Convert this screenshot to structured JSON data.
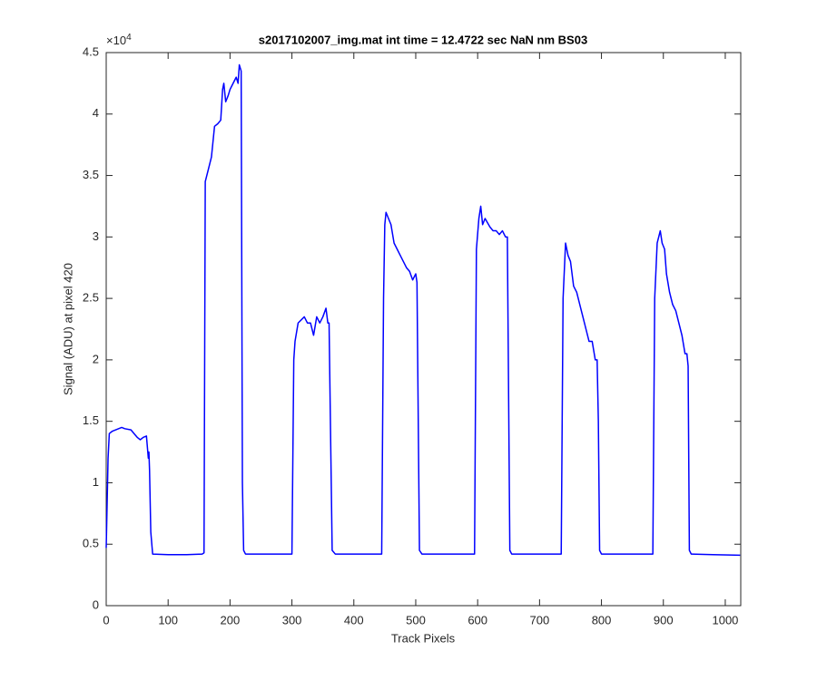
{
  "chart_data": {
    "type": "line",
    "title": "s2017102007_img.mat int time = 12.4722 sec  NaN nm BS03",
    "x_label": "Track Pixels",
    "y_label": "Signal (ADU) at pixel 420",
    "y_multiplier": {
      "base": "×10",
      "exponent": "4"
    },
    "xlim": [
      0,
      1025
    ],
    "ylim": [
      0,
      4.5
    ],
    "xticks": [
      0,
      100,
      200,
      300,
      400,
      500,
      600,
      700,
      800,
      900,
      1000
    ],
    "yticks": [
      0,
      0.5,
      1,
      1.5,
      2,
      2.5,
      3,
      3.5,
      4,
      4.5
    ],
    "grid": false,
    "series": [
      {
        "name": "Signal",
        "color": "#0000ff",
        "x": [
          0,
          3,
          5,
          10,
          15,
          25,
          30,
          40,
          45,
          50,
          55,
          60,
          65,
          68,
          69,
          70,
          72,
          75,
          100,
          130,
          155,
          158,
          160,
          165,
          170,
          175,
          180,
          185,
          188,
          190,
          193,
          197,
          200,
          205,
          210,
          213,
          215,
          218,
          220,
          222,
          225,
          260,
          300,
          303,
          305,
          310,
          320,
          325,
          330,
          335,
          340,
          345,
          350,
          355,
          358,
          360,
          365,
          370,
          400,
          445,
          448,
          450,
          452,
          456,
          460,
          465,
          470,
          475,
          480,
          485,
          490,
          495,
          500,
          502,
          506,
          510,
          550,
          595,
          598,
          602,
          605,
          608,
          612,
          620,
          625,
          630,
          635,
          640,
          645,
          648,
          652,
          655,
          700,
          735,
          738,
          742,
          746,
          750,
          755,
          760,
          765,
          770,
          775,
          780,
          785,
          790,
          793,
          795,
          797,
          800,
          840,
          883,
          886,
          890,
          895,
          898,
          902,
          905,
          910,
          915,
          920,
          925,
          930,
          935,
          938,
          940,
          942,
          945,
          980,
          1024
        ],
        "values": [
          0.47,
          1.2,
          1.4,
          1.42,
          1.43,
          1.45,
          1.44,
          1.43,
          1.4,
          1.37,
          1.35,
          1.37,
          1.38,
          1.2,
          1.25,
          1.1,
          0.6,
          0.42,
          0.415,
          0.415,
          0.42,
          0.43,
          3.45,
          3.55,
          3.65,
          3.9,
          3.92,
          3.95,
          4.2,
          4.25,
          4.1,
          4.15,
          4.2,
          4.25,
          4.3,
          4.25,
          4.4,
          4.35,
          1.0,
          0.45,
          0.42,
          0.42,
          0.42,
          2.0,
          2.15,
          2.3,
          2.35,
          2.3,
          2.3,
          2.2,
          2.35,
          2.3,
          2.35,
          2.42,
          2.3,
          2.3,
          0.45,
          0.42,
          0.42,
          0.42,
          2.5,
          3.1,
          3.2,
          3.15,
          3.1,
          2.95,
          2.9,
          2.85,
          2.8,
          2.75,
          2.72,
          2.65,
          2.7,
          2.63,
          0.45,
          0.42,
          0.42,
          0.42,
          2.9,
          3.15,
          3.25,
          3.1,
          3.15,
          3.08,
          3.05,
          3.05,
          3.02,
          3.05,
          3.0,
          3.0,
          0.45,
          0.42,
          0.42,
          0.42,
          2.5,
          2.95,
          2.85,
          2.8,
          2.6,
          2.55,
          2.45,
          2.35,
          2.25,
          2.15,
          2.15,
          2.0,
          2.0,
          1.5,
          0.45,
          0.42,
          0.42,
          0.42,
          2.5,
          2.95,
          3.05,
          2.95,
          2.9,
          2.7,
          2.55,
          2.45,
          2.4,
          2.3,
          2.2,
          2.05,
          2.05,
          1.95,
          0.45,
          0.42,
          0.415,
          0.41
        ]
      }
    ]
  }
}
